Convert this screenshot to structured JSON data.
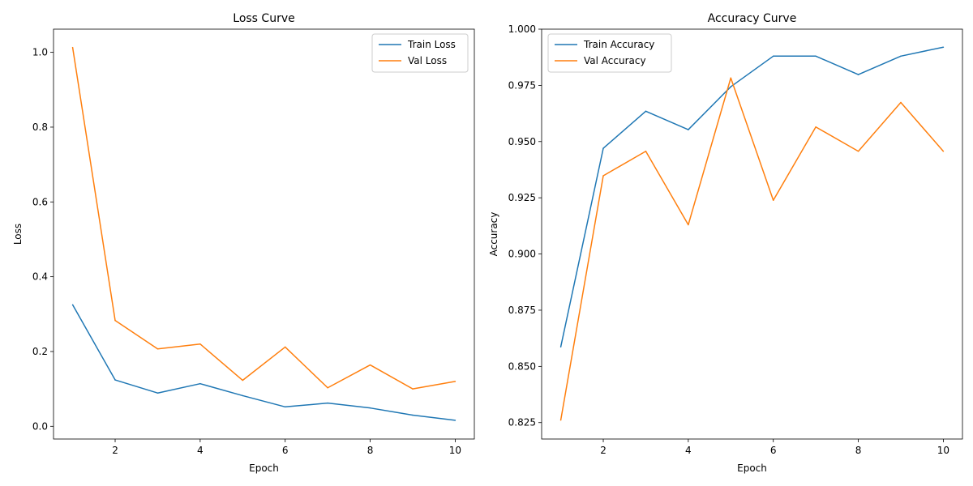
{
  "chart_data": [
    {
      "type": "line",
      "title": "Loss Curve",
      "xlabel": "Epoch",
      "ylabel": "Loss",
      "x": [
        1,
        2,
        3,
        4,
        5,
        6,
        7,
        8,
        9,
        10
      ],
      "xlim": [
        0.55,
        10.45
      ],
      "ylim": [
        -0.034,
        1.062
      ],
      "xticks": [
        2,
        4,
        6,
        8,
        10
      ],
      "yticks": [
        0.0,
        0.2,
        0.4,
        0.6,
        0.8,
        1.0
      ],
      "ytick_decimals": 1,
      "legend_position": "top-right",
      "grid": false,
      "series": [
        {
          "name": "Train Loss",
          "color": "#1f77b4",
          "values": [
            0.325,
            0.124,
            0.089,
            0.114,
            0.082,
            0.052,
            0.062,
            0.049,
            0.03,
            0.016
          ]
        },
        {
          "name": "Val Loss",
          "color": "#ff7f0e",
          "values": [
            1.013,
            0.283,
            0.207,
            0.22,
            0.123,
            0.212,
            0.103,
            0.164,
            0.1,
            0.12
          ]
        }
      ]
    },
    {
      "type": "line",
      "title": "Accuracy Curve",
      "xlabel": "Epoch",
      "ylabel": "Accuracy",
      "x": [
        1,
        2,
        3,
        4,
        5,
        6,
        7,
        8,
        9,
        10
      ],
      "xlim": [
        0.55,
        10.45
      ],
      "ylim": [
        0.8177,
        1.0
      ],
      "xticks": [
        2,
        4,
        6,
        8,
        10
      ],
      "yticks": [
        0.825,
        0.85,
        0.875,
        0.9,
        0.925,
        0.95,
        0.975,
        1.0
      ],
      "ytick_decimals": 3,
      "legend_position": "top-left",
      "grid": false,
      "series": [
        {
          "name": "Train Accuracy",
          "color": "#1f77b4",
          "values": [
            0.8587,
            0.947,
            0.9635,
            0.9553,
            0.9744,
            0.988,
            0.988,
            0.9798,
            0.988,
            0.992
          ]
        },
        {
          "name": "Val Accuracy",
          "color": "#ff7f0e",
          "values": [
            0.8261,
            0.9348,
            0.9457,
            0.913,
            0.9783,
            0.9239,
            0.9565,
            0.9457,
            0.9674,
            0.9457
          ]
        }
      ]
    }
  ]
}
